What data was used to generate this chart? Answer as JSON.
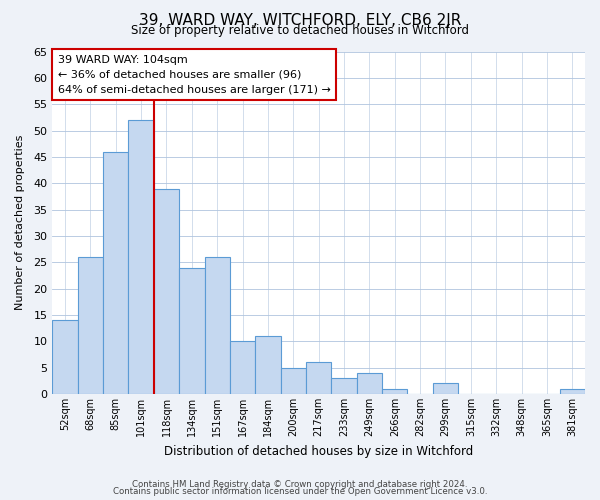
{
  "title": "39, WARD WAY, WITCHFORD, ELY, CB6 2JR",
  "subtitle": "Size of property relative to detached houses in Witchford",
  "xlabel": "Distribution of detached houses by size in Witchford",
  "ylabel": "Number of detached properties",
  "categories": [
    "52sqm",
    "68sqm",
    "85sqm",
    "101sqm",
    "118sqm",
    "134sqm",
    "151sqm",
    "167sqm",
    "184sqm",
    "200sqm",
    "217sqm",
    "233sqm",
    "249sqm",
    "266sqm",
    "282sqm",
    "299sqm",
    "315sqm",
    "332sqm",
    "348sqm",
    "365sqm",
    "381sqm"
  ],
  "values": [
    14,
    26,
    46,
    52,
    39,
    24,
    26,
    10,
    11,
    5,
    6,
    3,
    4,
    1,
    0,
    2,
    0,
    0,
    0,
    0,
    1
  ],
  "bar_color": "#c5d8f0",
  "bar_edge_color": "#5b9bd5",
  "vline_color": "#cc0000",
  "annotation_title": "39 WARD WAY: 104sqm",
  "annotation_line1": "← 36% of detached houses are smaller (96)",
  "annotation_line2": "64% of semi-detached houses are larger (171) →",
  "annotation_box_edge": "#cc0000",
  "ylim": [
    0,
    65
  ],
  "yticks": [
    0,
    5,
    10,
    15,
    20,
    25,
    30,
    35,
    40,
    45,
    50,
    55,
    60,
    65
  ],
  "footer1": "Contains HM Land Registry data © Crown copyright and database right 2024.",
  "footer2": "Contains public sector information licensed under the Open Government Licence v3.0.",
  "bg_color": "#eef2f8",
  "plot_bg_color": "#ffffff"
}
